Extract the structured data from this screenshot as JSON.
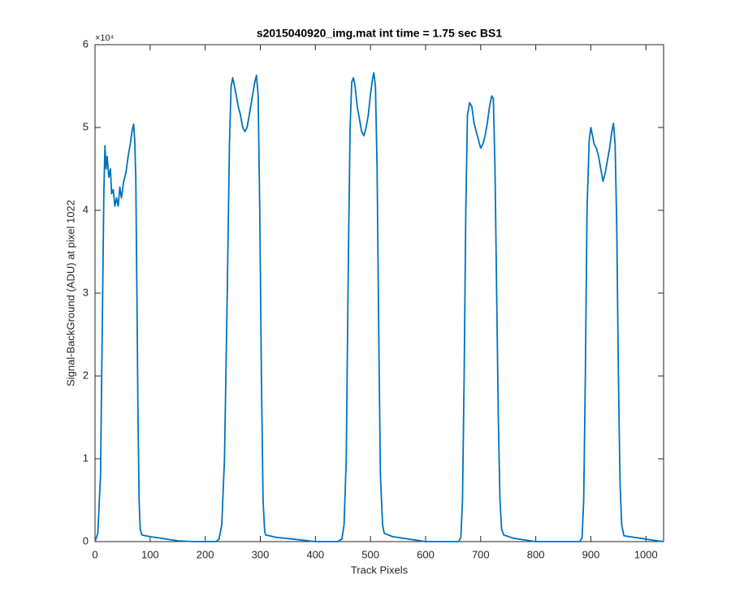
{
  "chart_data": {
    "type": "line",
    "title": "s2015040920_img.mat int time = 1.75 sec   BS1",
    "x_label": "Track Pixels",
    "y_label": "Signal-BackGround (ADU) at pixel 1022",
    "y_exponent_label": "×10⁴",
    "xlim": [
      0,
      1032
    ],
    "ylim": [
      0,
      60000
    ],
    "xticks": [
      0,
      100,
      200,
      300,
      400,
      500,
      600,
      700,
      800,
      900,
      1000
    ],
    "yticks": [
      {
        "value": 0,
        "label": "0"
      },
      {
        "value": 10000,
        "label": "1"
      },
      {
        "value": 20000,
        "label": "2"
      },
      {
        "value": 30000,
        "label": "3"
      },
      {
        "value": 40000,
        "label": "4"
      },
      {
        "value": 50000,
        "label": "5"
      },
      {
        "value": 60000,
        "label": "6"
      }
    ],
    "grid": false,
    "x": [
      0,
      5,
      10,
      13,
      16,
      18,
      20,
      22,
      25,
      28,
      30,
      33,
      36,
      39,
      42,
      45,
      48,
      52,
      56,
      60,
      64,
      67,
      70,
      72,
      74,
      76,
      78,
      80,
      82,
      85,
      100,
      120,
      150,
      180,
      220,
      225,
      230,
      235,
      240,
      244,
      247,
      250,
      253,
      256,
      260,
      264,
      268,
      272,
      276,
      280,
      285,
      290,
      293,
      296,
      299,
      302,
      305,
      308,
      310,
      330,
      360,
      400,
      440,
      448,
      452,
      456,
      460,
      463,
      466,
      469,
      472,
      476,
      480,
      484,
      488,
      492,
      496,
      500,
      504,
      506,
      509,
      512,
      515,
      518,
      522,
      525,
      540,
      570,
      600,
      660,
      664,
      667,
      670,
      673,
      676,
      680,
      684,
      688,
      692,
      696,
      700,
      704,
      708,
      712,
      716,
      720,
      723,
      726,
      729,
      732,
      735,
      738,
      742,
      760,
      800,
      880,
      884,
      887,
      890,
      893,
      897,
      900,
      903,
      906,
      910,
      914,
      918,
      922,
      926,
      930,
      934,
      938,
      941,
      944,
      947,
      950,
      953,
      956,
      960,
      980,
      1000,
      1020,
      1032
    ],
    "series": [
      {
        "color": "#0072bd",
        "values": [
          0,
          1000,
          8000,
          25000,
          42000,
          47800,
          45000,
          46500,
          44000,
          45000,
          42000,
          42500,
          40500,
          41500,
          40500,
          42800,
          41500,
          43500,
          44500,
          46500,
          48000,
          49500,
          50400,
          48500,
          44000,
          30000,
          15000,
          5000,
          1500,
          800,
          600,
          400,
          100,
          0,
          0,
          300,
          2000,
          10000,
          30000,
          48000,
          55000,
          56000,
          55000,
          54000,
          52500,
          51500,
          50000,
          49500,
          50000,
          51500,
          53500,
          55500,
          56300,
          54000,
          40000,
          20000,
          5000,
          1200,
          800,
          500,
          300,
          0,
          0,
          300,
          2000,
          10000,
          35000,
          50000,
          55500,
          56000,
          55000,
          52500,
          51000,
          49500,
          49000,
          50000,
          51500,
          54000,
          56000,
          56600,
          55000,
          45000,
          25000,
          8000,
          2000,
          1000,
          600,
          300,
          0,
          0,
          500,
          5000,
          20000,
          40000,
          51500,
          53000,
          52500,
          50500,
          49500,
          48500,
          47500,
          48000,
          49000,
          50500,
          52500,
          53800,
          53500,
          45000,
          30000,
          15000,
          5000,
          1500,
          800,
          400,
          0,
          0,
          500,
          5000,
          20000,
          40000,
          48500,
          50000,
          49000,
          48000,
          47500,
          46500,
          45000,
          43500,
          44500,
          46000,
          47500,
          49500,
          50500,
          48000,
          38000,
          20000,
          7000,
          2000,
          700,
          500,
          300,
          100,
          0
        ]
      }
    ]
  }
}
